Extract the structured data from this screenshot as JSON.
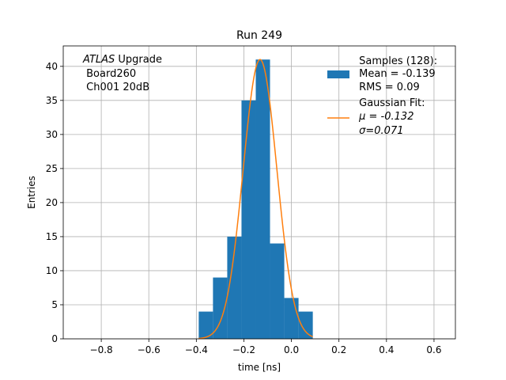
{
  "chart_data": {
    "type": "bar",
    "title": "Run 249",
    "xlabel": "time [ns]",
    "ylabel": "Entries",
    "xlim": [
      -0.96,
      0.69
    ],
    "ylim": [
      0,
      43
    ],
    "grid": true,
    "xticks": [
      -0.8,
      -0.6,
      -0.4,
      -0.2,
      0.0,
      0.2,
      0.4,
      0.6
    ],
    "xtick_labels": [
      "−0.8",
      "−0.6",
      "−0.4",
      "−0.2",
      "0.0",
      "0.2",
      "0.4",
      "0.6"
    ],
    "yticks": [
      0,
      5,
      10,
      15,
      20,
      25,
      30,
      35,
      40
    ],
    "yticks_labels": [
      "0",
      "5",
      "10",
      "15",
      "20",
      "25",
      "30",
      "35",
      "40"
    ],
    "histogram": {
      "color": "#1f77b4",
      "bin_edges": [
        -0.39,
        -0.33,
        -0.27,
        -0.21,
        -0.15,
        -0.09,
        -0.03,
        0.03,
        0.09
      ],
      "counts": [
        4,
        9,
        15,
        35,
        41,
        14,
        6,
        4
      ]
    },
    "gaussian_fit": {
      "color": "#ff7f0e",
      "amplitude": 41,
      "mu": -0.132,
      "sigma": 0.071
    },
    "annotation": {
      "line1_italic": "ATLAS",
      "line1_rest": " Upgrade",
      "line2": " Board260",
      "line3": " Ch001 20dB"
    },
    "legend": {
      "placement": "top-right",
      "samples": [
        " Samples (128):",
        " Mean = -0.139",
        " RMS = 0.09"
      ],
      "fit": [
        " Gaussian Fit:",
        " μ = -0.132",
        " σ=0.071"
      ]
    }
  }
}
